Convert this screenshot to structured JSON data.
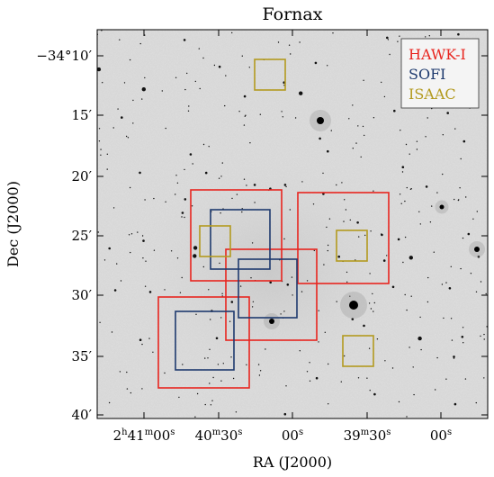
{
  "title": "Fornax",
  "x_axis": {
    "label": "RA (J2000)",
    "ticks": [
      {
        "parts": [
          "2",
          "h",
          "41",
          "m",
          "00",
          "s"
        ]
      },
      {
        "parts": [
          "40",
          "m",
          "30",
          "s"
        ]
      },
      {
        "parts": [
          "00",
          "s"
        ]
      },
      {
        "parts": [
          "39",
          "m",
          "30",
          "s"
        ]
      },
      {
        "parts": [
          "00",
          "s"
        ]
      }
    ]
  },
  "y_axis": {
    "label": "Dec (J2000)",
    "ticks": [
      "−34°10′",
      "15′",
      "20′",
      "25′",
      "30′",
      "35′",
      "40′"
    ]
  },
  "legend": {
    "placement": "top-right",
    "items": [
      {
        "label": "HAWK-I",
        "color": "#e8251f"
      },
      {
        "label": "SOFI",
        "color": "#1e3a6e"
      },
      {
        "label": "ISAAC",
        "color": "#b39a1f"
      }
    ]
  },
  "background": {
    "type": "greyscale-sky-image",
    "stars": "dark point sources",
    "colors": {
      "sky": "#d7d7d7",
      "star": "#111111"
    }
  },
  "fields": {
    "HAWK-I": 5,
    "SOFI": 3,
    "ISAAC": 4
  }
}
